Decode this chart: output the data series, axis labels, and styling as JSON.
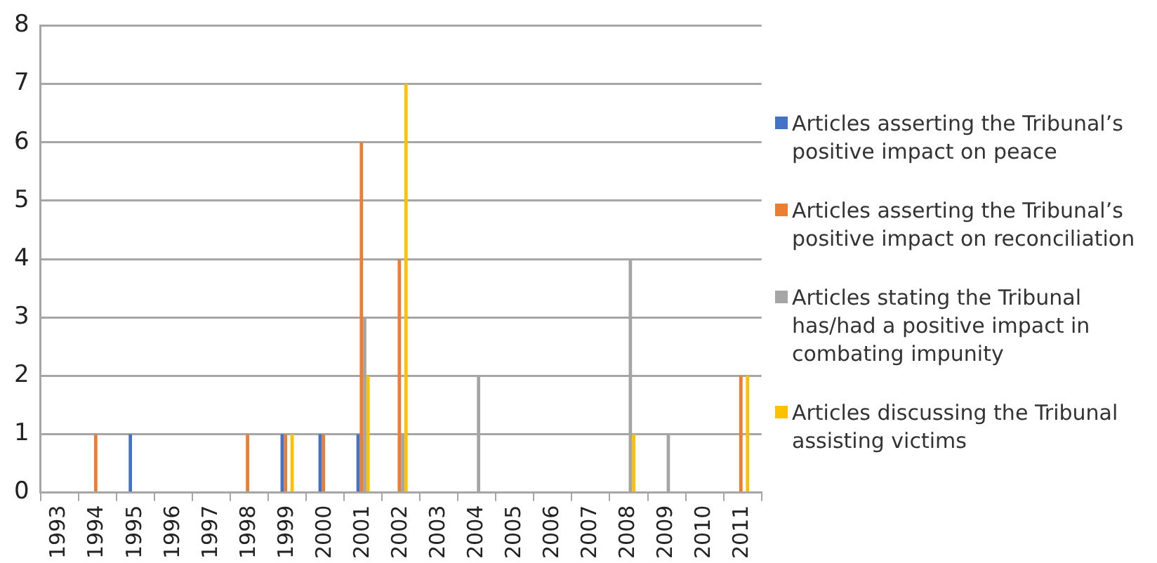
{
  "chart_data": {
    "type": "bar",
    "categories": [
      "1993",
      "1994",
      "1995",
      "1996",
      "1997",
      "1998",
      "1999",
      "2000",
      "2001",
      "2002",
      "2003",
      "2004",
      "2005",
      "2006",
      "2007",
      "2008",
      "2009",
      "2010",
      "2011"
    ],
    "series": [
      {
        "name": "Articles asserting the Tribunal’s positive impact on peace",
        "color": "#4472c4",
        "values": [
          0,
          0,
          1,
          0,
          0,
          0,
          1,
          1,
          1,
          0,
          0,
          0,
          0,
          0,
          0,
          0,
          0,
          0,
          0
        ]
      },
      {
        "name": "Articles asserting the Tribunal’s positive impact on reconciliation",
        "color": "#ed7d31",
        "values": [
          0,
          1,
          0,
          0,
          0,
          1,
          1,
          1,
          6,
          4,
          0,
          0,
          0,
          0,
          0,
          0,
          0,
          0,
          2
        ]
      },
      {
        "name": "Articles stating the Tribunal has/had a positive impact in combating impunity",
        "color": "#a5a5a5",
        "values": [
          0,
          0,
          0,
          0,
          0,
          0,
          0,
          0,
          3,
          1,
          0,
          2,
          0,
          0,
          0,
          4,
          1,
          0,
          0
        ]
      },
      {
        "name": "Articles discussing the Tribunal assisting victims",
        "color": "#ffc000",
        "values": [
          0,
          0,
          0,
          0,
          0,
          0,
          1,
          0,
          2,
          7,
          0,
          0,
          0,
          0,
          0,
          1,
          0,
          0,
          2
        ]
      }
    ],
    "ylim": [
      0,
      8
    ],
    "yticks": [
      0,
      1,
      2,
      3,
      4,
      5,
      6,
      7,
      8
    ],
    "grid": "y",
    "legend": "right"
  }
}
